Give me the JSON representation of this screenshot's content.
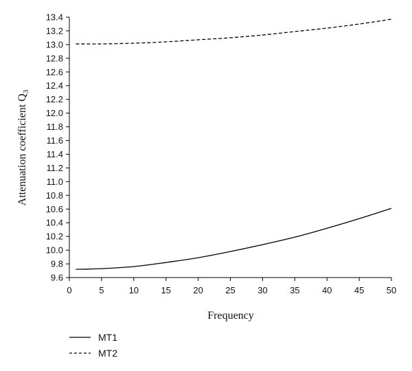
{
  "chart_data": {
    "type": "line",
    "xlabel": "Frequency",
    "ylabel": "Attenuation coefficient Q",
    "ylabel_subscript": "3",
    "xlim": [
      0,
      50
    ],
    "ylim": [
      9.6,
      13.4
    ],
    "x_ticks": [
      "0",
      "5",
      "10",
      "15",
      "20",
      "25",
      "30",
      "35",
      "40",
      "45",
      "50"
    ],
    "y_ticks": [
      "9.6",
      "9.8",
      "10.0",
      "10.2",
      "10.4",
      "10.6",
      "10.8",
      "11.0",
      "11.2",
      "11.4",
      "11.6",
      "11.8",
      "12.0",
      "12.2",
      "12.4",
      "12.6",
      "12.8",
      "13.0",
      "13.2",
      "13.4"
    ],
    "grid": false,
    "legend_position": "bottom-left, below plot",
    "x": [
      1,
      5,
      10,
      15,
      20,
      25,
      30,
      35,
      40,
      45,
      50
    ],
    "series": [
      {
        "name": "MT1",
        "style": "solid",
        "color": "#000000",
        "values": [
          9.72,
          9.73,
          9.76,
          9.82,
          9.89,
          9.98,
          10.08,
          10.19,
          10.32,
          10.46,
          10.61
        ]
      },
      {
        "name": "MT2",
        "style": "dashed",
        "color": "#000000",
        "values": [
          13.01,
          13.01,
          13.02,
          13.04,
          13.07,
          13.1,
          13.14,
          13.19,
          13.24,
          13.3,
          13.37
        ]
      }
    ]
  }
}
